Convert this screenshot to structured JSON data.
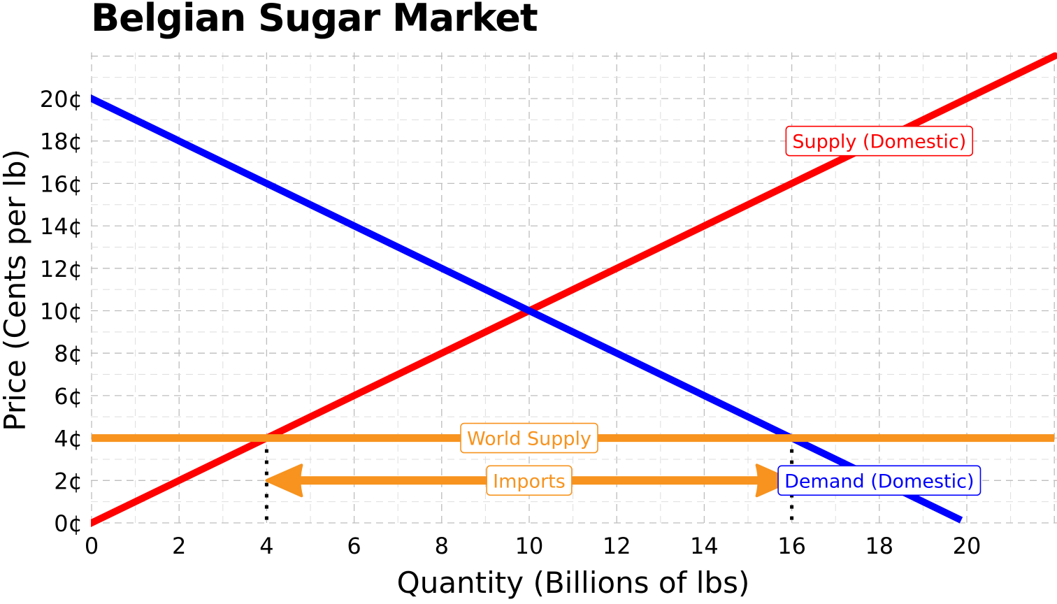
{
  "chart_data": {
    "type": "line",
    "title": "Belgian Sugar Market",
    "xlabel": "Quantity (Billions of lbs)",
    "ylabel": "Price (Cents per lb)",
    "xlim": [
      0,
      22
    ],
    "ylim": [
      0,
      22
    ],
    "xticks": [
      0,
      2,
      4,
      6,
      8,
      10,
      12,
      14,
      16,
      18,
      20
    ],
    "xtick_labels": [
      "0",
      "2",
      "4",
      "6",
      "8",
      "10",
      "12",
      "14",
      "16",
      "18",
      "20"
    ],
    "yticks": [
      0,
      2,
      4,
      6,
      8,
      10,
      12,
      14,
      16,
      18,
      20
    ],
    "ytick_labels": [
      "0¢",
      "2¢",
      "4¢",
      "6¢",
      "8¢",
      "10¢",
      "12¢",
      "14¢",
      "16¢",
      "18¢",
      "20¢"
    ],
    "grid": true,
    "series": [
      {
        "name": "Supply (Domestic)",
        "color": "#ff0000",
        "x": [
          0,
          22
        ],
        "y": [
          0,
          22
        ],
        "label_at": [
          18,
          18
        ]
      },
      {
        "name": "Demand (Domestic)",
        "color": "#0000ff",
        "x": [
          0,
          19.8
        ],
        "y": [
          20,
          0.2
        ],
        "label_at": [
          18,
          2
        ]
      },
      {
        "name": "World Supply",
        "color": "#f7931e",
        "x": [
          0,
          22
        ],
        "y": [
          4,
          4
        ],
        "label_at": [
          10,
          4
        ]
      }
    ],
    "annotations": [
      {
        "text": "Imports",
        "type": "double-arrow",
        "color": "#f7931e",
        "x": [
          4,
          16
        ],
        "y": 2,
        "label_at": [
          10,
          2
        ]
      }
    ],
    "reference_lines": [
      {
        "style": "dotted",
        "color": "#000000",
        "x": 4,
        "y": [
          0,
          4
        ]
      },
      {
        "style": "dotted",
        "color": "#000000",
        "x": 16,
        "y": [
          0,
          4
        ]
      }
    ]
  }
}
